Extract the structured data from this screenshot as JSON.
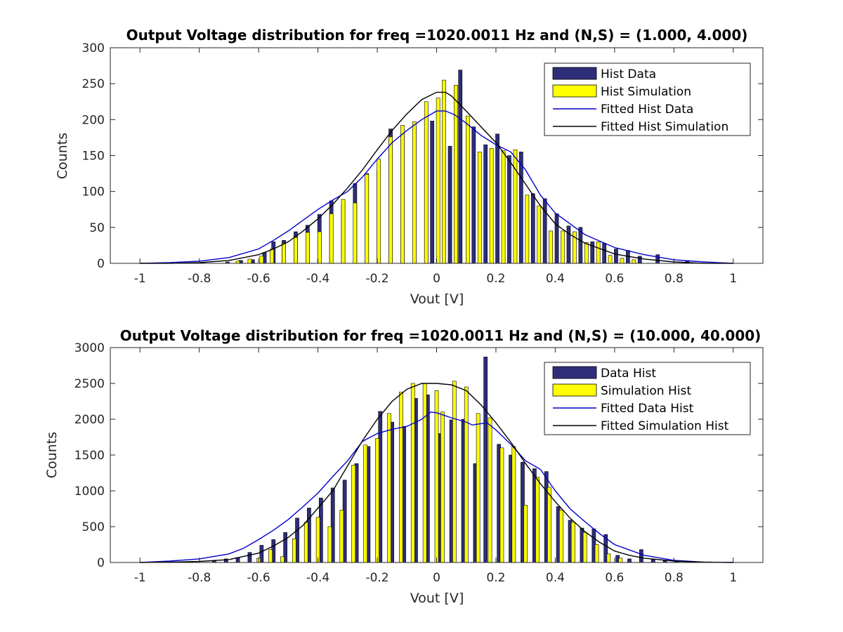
{
  "chart_data": [
    {
      "type": "bar",
      "title": "Output Voltage distribution for freq =1020.0011 Hz and (N,S) = (1.000, 4.000)",
      "xlabel": "Vout [V]",
      "ylabel": "Counts",
      "xlim": [
        -1.1,
        1.1
      ],
      "ylim": [
        0,
        300
      ],
      "xticks": [
        -1,
        -0.8,
        -0.6,
        -0.4,
        -0.2,
        0,
        0.2,
        0.4,
        0.6,
        0.8,
        1
      ],
      "xtick_labels": [
        "-1",
        "-0.8",
        "-0.6",
        "-0.4",
        "-0.2",
        "0",
        "0.2",
        "0.4",
        "0.6",
        "0.8",
        "1"
      ],
      "yticks": [
        0,
        50,
        100,
        150,
        200,
        250,
        300
      ],
      "ytick_labels": [
        "0",
        "50",
        "100",
        "150",
        "200",
        "250",
        "300"
      ],
      "legend_position": "top-right",
      "bar_width": 0.012,
      "series": [
        {
          "name": "Hist Data",
          "kind": "bar",
          "color": "#2e2d7a",
          "x": [
            -0.87,
            -0.79,
            -0.705,
            -0.66,
            -0.62,
            -0.58,
            -0.55,
            -0.515,
            -0.475,
            -0.435,
            -0.395,
            -0.355,
            -0.315,
            -0.275,
            -0.235,
            -0.195,
            -0.155,
            -0.115,
            -0.075,
            -0.035,
            -0.015,
            0.045,
            0.08,
            0.125,
            0.165,
            0.205,
            0.245,
            0.285,
            0.325,
            0.365,
            0.405,
            0.445,
            0.485,
            0.525,
            0.565,
            0.605,
            0.645,
            0.685,
            0.745,
            0.845
          ],
          "values": [
            1,
            1,
            2,
            4,
            5,
            15,
            30,
            32,
            44,
            53,
            68,
            87,
            82,
            111,
            125,
            130,
            187,
            182,
            190,
            200,
            198,
            163,
            269,
            190,
            165,
            180,
            150,
            155,
            97,
            90,
            69,
            52,
            50,
            30,
            28,
            20,
            18,
            10,
            12,
            3
          ]
        },
        {
          "name": "Hist Simulation",
          "kind": "bar",
          "color": "#ffff00",
          "x": [
            -0.67,
            -0.63,
            -0.59,
            -0.555,
            -0.515,
            -0.475,
            -0.435,
            -0.395,
            -0.355,
            -0.315,
            -0.275,
            -0.235,
            -0.195,
            -0.155,
            -0.115,
            -0.075,
            -0.035,
            0.005,
            0.025,
            0.065,
            0.105,
            0.145,
            0.185,
            0.225,
            0.265,
            0.305,
            0.345,
            0.385,
            0.425,
            0.465,
            0.505,
            0.545,
            0.585,
            0.625,
            0.665
          ],
          "values": [
            3,
            6,
            10,
            20,
            28,
            36,
            43,
            44,
            69,
            89,
            84,
            124,
            145,
            176,
            192,
            197,
            225,
            230,
            255,
            248,
            205,
            155,
            160,
            157,
            158,
            95,
            80,
            45,
            45,
            44,
            29,
            30,
            11,
            7,
            5
          ]
        },
        {
          "name": "Fitted Hist Data",
          "kind": "line",
          "color": "#0000cc",
          "x": [
            -1.0,
            -0.9,
            -0.8,
            -0.7,
            -0.6,
            -0.55,
            -0.5,
            -0.45,
            -0.4,
            -0.35,
            -0.3,
            -0.25,
            -0.2,
            -0.15,
            -0.1,
            -0.05,
            0.0,
            0.03,
            0.06,
            0.1,
            0.15,
            0.2,
            0.25,
            0.3,
            0.35,
            0.4,
            0.45,
            0.5,
            0.6,
            0.7,
            0.8,
            0.9,
            1.0
          ],
          "values": [
            0,
            1,
            3,
            8,
            20,
            32,
            45,
            60,
            75,
            88,
            100,
            120,
            145,
            168,
            185,
            200,
            212,
            212,
            207,
            195,
            178,
            165,
            155,
            130,
            95,
            70,
            55,
            40,
            22,
            12,
            5,
            2,
            0
          ]
        },
        {
          "name": "Fitted Hist Simulation",
          "kind": "line",
          "color": "#000000",
          "x": [
            -1.0,
            -0.9,
            -0.8,
            -0.7,
            -0.6,
            -0.55,
            -0.5,
            -0.45,
            -0.4,
            -0.35,
            -0.3,
            -0.25,
            -0.2,
            -0.15,
            -0.1,
            -0.05,
            0.0,
            0.03,
            0.05,
            0.1,
            0.15,
            0.2,
            0.25,
            0.3,
            0.35,
            0.4,
            0.45,
            0.5,
            0.6,
            0.7,
            0.8,
            0.9,
            1.0
          ],
          "values": [
            0,
            0,
            1,
            4,
            12,
            20,
            30,
            45,
            62,
            82,
            105,
            130,
            158,
            185,
            208,
            228,
            238,
            238,
            233,
            212,
            190,
            168,
            140,
            110,
            80,
            55,
            40,
            28,
            13,
            6,
            2,
            0,
            0
          ]
        }
      ]
    },
    {
      "type": "bar",
      "title": "Output Voltage distribution for freq =1020.0011 Hz and (N,S) = (10.000, 40.000)",
      "xlabel": "Vout [V]",
      "ylabel": "Counts",
      "xlim": [
        -1.1,
        1.1
      ],
      "ylim": [
        0,
        3000
      ],
      "xticks": [
        -1,
        -0.8,
        -0.6,
        -0.4,
        -0.2,
        0,
        0.2,
        0.4,
        0.6,
        0.8,
        1
      ],
      "xtick_labels": [
        "-1",
        "-0.8",
        "-0.6",
        "-0.4",
        "-0.2",
        "0",
        "0.2",
        "0.4",
        "0.6",
        "0.8",
        "1"
      ],
      "yticks": [
        0,
        500,
        1000,
        1500,
        2000,
        2500,
        3000
      ],
      "ytick_labels": [
        "0",
        "500",
        "1000",
        "1500",
        "2000",
        "2500",
        "3000"
      ],
      "legend_position": "top-right",
      "bar_width": 0.012,
      "series": [
        {
          "name": "Data Hist",
          "kind": "bar",
          "color": "#2e2d7a",
          "x": [
            -0.75,
            -0.71,
            -0.67,
            -0.63,
            -0.59,
            -0.55,
            -0.51,
            -0.47,
            -0.43,
            -0.39,
            -0.35,
            -0.31,
            -0.27,
            -0.23,
            -0.19,
            -0.15,
            -0.11,
            -0.07,
            -0.03,
            0.01,
            0.05,
            0.09,
            0.13,
            0.165,
            0.21,
            0.25,
            0.29,
            0.33,
            0.37,
            0.41,
            0.45,
            0.49,
            0.53,
            0.57,
            0.61,
            0.65,
            0.69,
            0.73,
            0.77,
            0.81
          ],
          "values": [
            30,
            50,
            70,
            140,
            240,
            320,
            420,
            620,
            760,
            900,
            1040,
            1150,
            1380,
            1620,
            2110,
            1960,
            1900,
            2290,
            2340,
            1800,
            1990,
            2000,
            1380,
            2870,
            1650,
            1500,
            1400,
            1310,
            1270,
            780,
            590,
            480,
            470,
            390,
            100,
            50,
            180,
            40,
            30,
            15
          ]
        },
        {
          "name": "Simulation Hist",
          "kind": "bar",
          "color": "#ffff00",
          "x": [
            -0.6,
            -0.56,
            -0.52,
            -0.48,
            -0.44,
            -0.4,
            -0.36,
            -0.32,
            -0.28,
            -0.24,
            -0.2,
            -0.16,
            -0.12,
            -0.08,
            -0.04,
            0.0,
            0.02,
            0.06,
            0.1,
            0.14,
            0.18,
            0.22,
            0.26,
            0.3,
            0.34,
            0.38,
            0.42,
            0.46,
            0.5,
            0.54,
            0.58,
            0.62
          ],
          "values": [
            60,
            180,
            80,
            330,
            560,
            630,
            500,
            730,
            1360,
            1640,
            1730,
            2080,
            2380,
            2500,
            2500,
            2400,
            2100,
            2530,
            2450,
            2080,
            2020,
            1600,
            1620,
            800,
            1190,
            1050,
            730,
            560,
            420,
            250,
            120,
            60
          ]
        },
        {
          "name": "Fitted Data Hist",
          "kind": "line",
          "color": "#0000cc",
          "x": [
            -1.0,
            -0.9,
            -0.8,
            -0.7,
            -0.65,
            -0.6,
            -0.55,
            -0.5,
            -0.45,
            -0.4,
            -0.35,
            -0.3,
            -0.25,
            -0.2,
            -0.15,
            -0.1,
            -0.05,
            -0.02,
            0.0,
            0.05,
            0.1,
            0.12,
            0.17,
            0.2,
            0.25,
            0.3,
            0.35,
            0.4,
            0.45,
            0.5,
            0.55,
            0.6,
            0.7,
            0.8,
            0.9,
            1.0
          ],
          "values": [
            0,
            20,
            50,
            120,
            200,
            320,
            450,
            600,
            780,
            970,
            1200,
            1420,
            1690,
            1800,
            1860,
            1900,
            2000,
            2100,
            2090,
            2020,
            1960,
            1920,
            1950,
            1850,
            1650,
            1420,
            1300,
            1000,
            750,
            570,
            400,
            250,
            100,
            30,
            5,
            0
          ]
        },
        {
          "name": "Fitted Simulation Hist",
          "kind": "line",
          "color": "#000000",
          "x": [
            -1.0,
            -0.9,
            -0.8,
            -0.7,
            -0.6,
            -0.55,
            -0.5,
            -0.45,
            -0.4,
            -0.35,
            -0.3,
            -0.25,
            -0.2,
            -0.15,
            -0.1,
            -0.05,
            0.0,
            0.05,
            0.1,
            0.15,
            0.2,
            0.25,
            0.3,
            0.35,
            0.4,
            0.45,
            0.5,
            0.55,
            0.6,
            0.65,
            0.7,
            0.8,
            0.9,
            1.0
          ],
          "values": [
            0,
            5,
            15,
            40,
            130,
            230,
            350,
            520,
            760,
            1000,
            1350,
            1700,
            2000,
            2250,
            2420,
            2500,
            2500,
            2480,
            2400,
            2200,
            1950,
            1680,
            1380,
            1100,
            850,
            620,
            430,
            280,
            160,
            100,
            60,
            20,
            5,
            0
          ]
        }
      ]
    }
  ]
}
